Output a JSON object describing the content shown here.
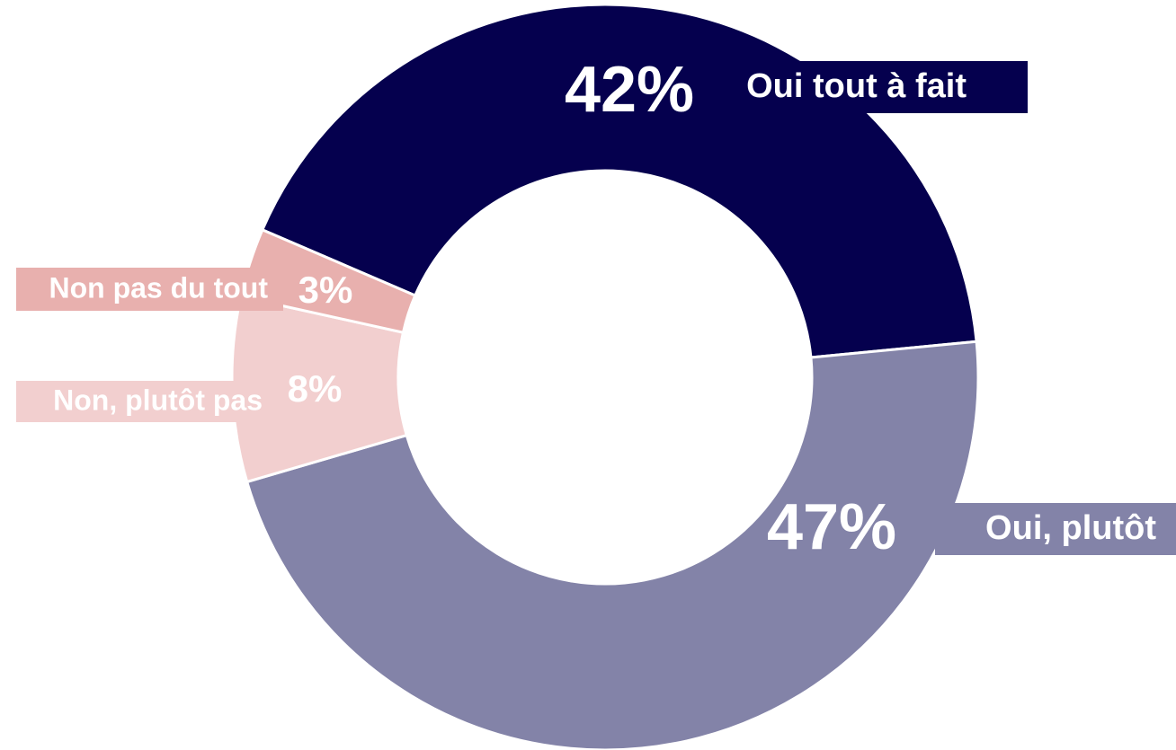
{
  "chart_data": {
    "type": "donut",
    "categories": [
      "Oui tout à fait",
      "Oui, plutôt",
      "Non, plutôt pas",
      "Non pas du tout"
    ],
    "values": [
      42,
      47,
      8,
      3
    ],
    "value_labels": [
      "42%",
      "47%",
      "8%",
      "3%"
    ],
    "colors": [
      "#05004e",
      "#8383a8",
      "#f2cfcf",
      "#e8b0ae"
    ]
  }
}
